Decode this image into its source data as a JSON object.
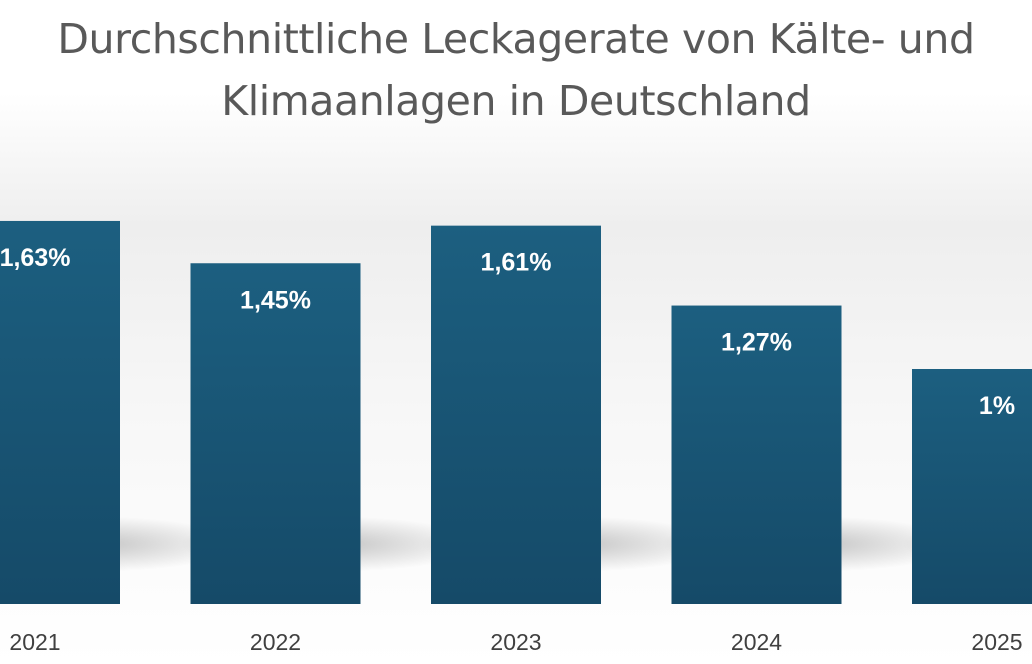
{
  "chart_data": {
    "type": "bar",
    "title_lines": [
      "Durchschnittliche Leckagerate von Kälte- und",
      "Klimaanlagen in Deutschland"
    ],
    "categories": [
      "2021",
      "2022",
      "2023",
      "2024",
      "2025"
    ],
    "values": [
      1.63,
      1.45,
      1.61,
      1.27,
      1.0
    ],
    "data_labels": [
      "1,63%",
      "1,45%",
      "1,61%",
      "1,27%",
      "1%"
    ],
    "ylim": [
      0,
      1.8
    ],
    "grid": false,
    "legend": "none",
    "bar_color": "#17506f",
    "bar_color_top": "#1c5f80"
  }
}
